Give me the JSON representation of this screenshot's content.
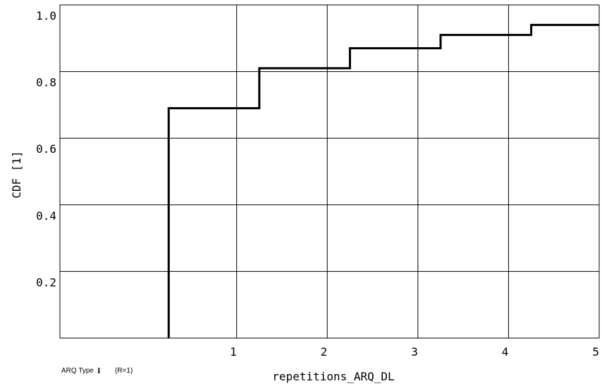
{
  "chart_data": {
    "type": "line",
    "step": true,
    "title": "",
    "xlabel": "repetitions_ARQ_DL",
    "ylabel": "CDF [1]",
    "xlim": [
      -0.95,
      5
    ],
    "ylim": [
      0,
      1.0
    ],
    "xticks": [
      1,
      2,
      3,
      4,
      5
    ],
    "xtick_labels": [
      "1",
      "2",
      "3",
      "4",
      "5"
    ],
    "yticks": [
      0.2,
      0.4,
      0.6,
      0.8,
      1.0
    ],
    "ytick_labels": [
      "0.2",
      "0.4",
      "0.6",
      "0.8",
      "1.0"
    ],
    "grid": true,
    "series": [
      {
        "name": "",
        "x": [
          0.25,
          1.25,
          2.25,
          3.25,
          4.25
        ],
        "y": [
          0.69,
          0.81,
          0.87,
          0.91,
          0.94
        ],
        "color": "#000000"
      }
    ],
    "legend": {
      "label": "ARQ Type",
      "roman": "I",
      "extra": "(R=1)",
      "position": "bottom-left"
    }
  }
}
